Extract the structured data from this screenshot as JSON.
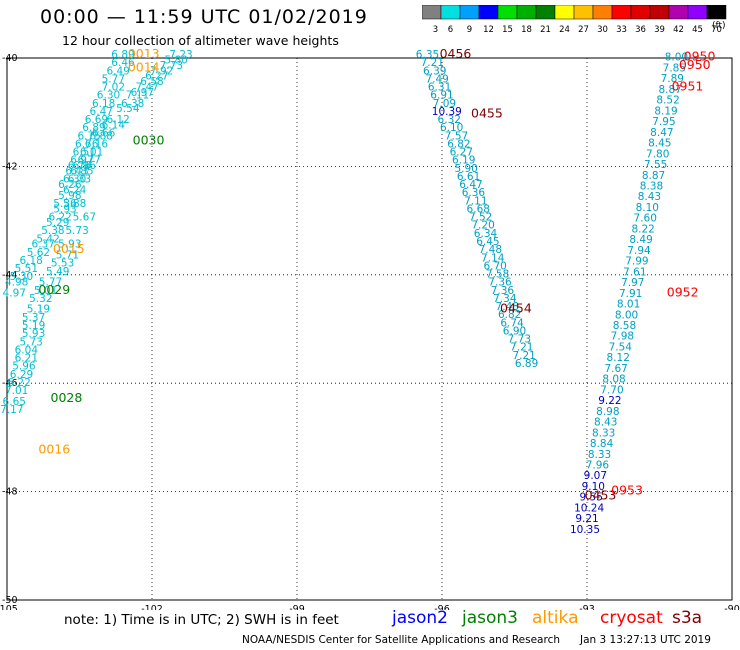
{
  "title": "00:00 — 11:59 UTC 01/02/2019",
  "subtitle": "12 hour collection of altimeter wave heights",
  "colorbar": {
    "labels": [
      "3",
      "6",
      "9",
      "12",
      "15",
      "18",
      "21",
      "24",
      "27",
      "30",
      "33",
      "36",
      "39",
      "42",
      "45",
      "70"
    ],
    "unit": "(ft)",
    "colors": [
      "#808080",
      "#00e0e0",
      "#00a0ff",
      "#0000ff",
      "#00e000",
      "#00b000",
      "#008000",
      "#ffff00",
      "#ffc000",
      "#ff8000",
      "#ff0000",
      "#e00000",
      "#c00000",
      "#b000b0",
      "#9000ff",
      "#000000"
    ]
  },
  "map": {
    "lon_ticks": [
      -105,
      -102,
      -99,
      -96,
      -93,
      -90
    ],
    "lat_ticks": [
      -40,
      -42,
      -44,
      -46,
      -48,
      -50
    ],
    "lon_range": [
      -105,
      -90
    ],
    "lat_range": [
      -50,
      -40
    ],
    "grid": "dotted"
  },
  "track_labels": [
    {
      "text": "0013",
      "lon": -102.5,
      "lat": -40.0,
      "color": "#ff9900"
    },
    {
      "text": "0014",
      "lon": -102.5,
      "lat": -40.25,
      "color": "#ff9900"
    },
    {
      "text": "0030",
      "lon": -102.4,
      "lat": -41.6,
      "color": "#008000"
    },
    {
      "text": "0015",
      "lon": -104.05,
      "lat": -43.6,
      "color": "#ff9900"
    },
    {
      "text": "0029",
      "lon": -104.35,
      "lat": -44.35,
      "color": "#008000"
    },
    {
      "text": "0028",
      "lon": -104.1,
      "lat": -46.35,
      "color": "#008000"
    },
    {
      "text": "0016",
      "lon": -104.35,
      "lat": -47.3,
      "color": "#ff9900"
    },
    {
      "text": "0456",
      "lon": -96.05,
      "lat": -40.0,
      "color": "#800000"
    },
    {
      "text": "0455",
      "lon": -95.4,
      "lat": -41.1,
      "color": "#800000"
    },
    {
      "text": "0454",
      "lon": -94.8,
      "lat": -44.7,
      "color": "#800000"
    },
    {
      "text": "0453",
      "lon": -93.05,
      "lat": -48.15,
      "color": "#800000"
    },
    {
      "text": "0950",
      "lon": -91.0,
      "lat": -40.05,
      "color": "#ff0000"
    },
    {
      "text": "0950",
      "lon": -91.1,
      "lat": -40.2,
      "color": "#ff0000"
    },
    {
      "text": "0951",
      "lon": -91.25,
      "lat": -40.6,
      "color": "#ff0000"
    },
    {
      "text": "0952",
      "lon": -91.35,
      "lat": -44.4,
      "color": "#ff0000"
    },
    {
      "text": "0953",
      "lon": -92.5,
      "lat": -48.05,
      "color": "#ff0000"
    }
  ],
  "tracks": [
    {
      "name": "track-a",
      "color": "#00c0d0",
      "points": [
        [
          "7.23",
          -101.4,
          -40.0
        ],
        [
          "5.80",
          -101.5,
          -40.1
        ],
        [
          "6.89",
          -102.6,
          -40.0
        ],
        [
          "6.46",
          -102.6,
          -40.15
        ],
        [
          "7.73",
          -101.6,
          -40.2
        ],
        [
          "7.92",
          -101.8,
          -40.3
        ],
        [
          "6.49",
          -102.7,
          -40.3
        ],
        [
          "6.27",
          -101.9,
          -40.4
        ],
        [
          "5.77",
          -102.8,
          -40.45
        ],
        [
          "6.58",
          -102.0,
          -40.5
        ],
        [
          "7.02",
          -102.8,
          -40.6
        ],
        [
          "7.47",
          -102.1,
          -40.6
        ],
        [
          "6.30",
          -102.9,
          -40.75
        ],
        [
          "7.11",
          -102.3,
          -40.75
        ],
        [
          "6.38",
          -102.4,
          -40.9
        ],
        [
          "6.18",
          -103.0,
          -40.9
        ],
        [
          "5.54",
          -102.5,
          -41.0
        ],
        [
          "6.47",
          -103.05,
          -41.05
        ],
        [
          "6.97",
          -102.2,
          -40.7
        ],
        [
          "6.12",
          -102.7,
          -41.2
        ],
        [
          "6.69",
          -103.15,
          -41.2
        ],
        [
          "6.14",
          -102.8,
          -41.3
        ],
        [
          "6.89",
          -103.2,
          -41.35
        ],
        [
          "6.66",
          -103.0,
          -41.45
        ],
        [
          "6.75",
          -103.3,
          -41.5
        ],
        [
          "6.88",
          -103.05,
          -41.5
        ],
        [
          "6.76",
          -103.35,
          -41.65
        ],
        [
          "6.16",
          -103.15,
          -41.65
        ],
        [
          "6.51",
          -103.4,
          -41.8
        ],
        [
          "6.01",
          -103.25,
          -41.8
        ],
        [
          "6.97",
          -103.45,
          -41.95
        ],
        [
          "6.77",
          -103.3,
          -41.95
        ],
        [
          "6.76",
          -103.5,
          -42.05
        ],
        [
          "6.96",
          -103.4,
          -42.05
        ],
        [
          "6.43",
          -103.55,
          -42.15
        ],
        [
          "6.85",
          -103.45,
          -42.15
        ],
        [
          "6.30",
          -103.6,
          -42.3
        ],
        [
          "6.33",
          -103.5,
          -42.3
        ],
        [
          "6.26",
          -103.7,
          -42.4
        ],
        [
          "6.24",
          -103.6,
          -42.5
        ],
        [
          "5.98",
          -103.7,
          -42.6
        ],
        [
          "5.36",
          -103.8,
          -42.75
        ],
        [
          "5.88",
          -103.6,
          -42.75
        ],
        [
          "5.93",
          -103.8,
          -42.85
        ],
        [
          "6.22",
          -103.9,
          -43.0
        ],
        [
          "5.67",
          -103.4,
          -43.0
        ],
        [
          "5.29",
          -103.95,
          -43.1
        ],
        [
          "5.38",
          -104.05,
          -43.25
        ],
        [
          "5.73",
          -103.55,
          -43.25
        ],
        [
          "5.42",
          -104.15,
          -43.4
        ],
        [
          "6.37",
          -104.25,
          -43.5
        ],
        [
          "5.93",
          -103.7,
          -43.5
        ],
        [
          "5.62",
          -104.35,
          -43.65
        ],
        [
          "5.71",
          -103.75,
          -43.7
        ],
        [
          "6.18",
          -104.5,
          -43.8
        ],
        [
          "5.53",
          -103.85,
          -43.85
        ],
        [
          "5.51",
          -104.6,
          -43.95
        ],
        [
          "5.49",
          -103.95,
          -44.0
        ],
        [
          "5.30",
          -104.7,
          -44.1
        ],
        [
          "5.77",
          -104.1,
          -44.2
        ],
        [
          "4.98",
          -104.8,
          -44.2
        ],
        [
          "5.01",
          -104.2,
          -44.35
        ],
        [
          "4.97",
          -104.85,
          -44.4
        ],
        [
          "5.32",
          -104.3,
          -44.5
        ],
        [
          "5.19",
          -104.35,
          -44.7
        ],
        [
          "5.37",
          -104.45,
          -44.85
        ],
        [
          "5.19",
          -104.45,
          -45.0
        ],
        [
          "5.93",
          -104.45,
          -45.15
        ],
        [
          "5.73",
          -104.5,
          -45.3
        ],
        [
          "6.04",
          -104.6,
          -45.45
        ],
        [
          "6.21",
          -104.6,
          -45.6
        ],
        [
          "5.96",
          -104.65,
          -45.75
        ],
        [
          "6.29",
          -104.7,
          -45.9
        ],
        [
          "6.22",
          -104.75,
          -46.05
        ],
        [
          "7.01",
          -104.8,
          -46.2
        ],
        [
          "6.65",
          -104.85,
          -46.4
        ],
        [
          "7.17",
          -104.9,
          -46.55
        ]
      ]
    }
  ],
  "ticks_by_track": {
    "t456": [
      [
        "6.35",
        -96.3,
        -40.0
      ],
      [
        "7.21",
        -96.2,
        -40.15
      ],
      [
        "6.39",
        -96.15,
        -40.3
      ],
      [
        "7.49",
        -96.1,
        -40.45
      ],
      [
        "6.31",
        -96.05,
        -40.6
      ],
      [
        "6.91",
        -96.0,
        -40.75
      ],
      [
        "7.09",
        -95.95,
        -40.9
      ],
      [
        "10.39",
        -95.9,
        -41.05
      ],
      [
        "6.32",
        -95.85,
        -41.2
      ],
      [
        "6.10",
        -95.8,
        -41.35
      ],
      [
        "7.57",
        -95.7,
        -41.5
      ],
      [
        "6.82",
        -95.65,
        -41.65
      ],
      [
        "6.27",
        -95.6,
        -41.8
      ],
      [
        "6.19",
        -95.55,
        -41.95
      ],
      [
        "5.90",
        -95.5,
        -42.1
      ],
      [
        "6.61",
        -95.45,
        -42.25
      ],
      [
        "6.47",
        -95.4,
        -42.4
      ],
      [
        "6.36",
        -95.35,
        -42.55
      ],
      [
        "7.11",
        -95.3,
        -42.7
      ],
      [
        "6.68",
        -95.25,
        -42.85
      ],
      [
        "7.52",
        -95.2,
        -43.0
      ],
      [
        "7.20",
        -95.15,
        -43.15
      ],
      [
        "6.34",
        -95.1,
        -43.3
      ],
      [
        "6.45",
        -95.05,
        -43.45
      ],
      [
        "7.48",
        -95.0,
        -43.6
      ],
      [
        "7.14",
        -94.95,
        -43.75
      ],
      [
        "6.70",
        -94.9,
        -43.9
      ],
      [
        "7.58",
        -94.85,
        -44.05
      ],
      [
        "7.36",
        -94.8,
        -44.2
      ],
      [
        "7.36",
        -94.75,
        -44.35
      ],
      [
        "7.34",
        -94.7,
        -44.5
      ],
      [
        "7.48",
        -94.65,
        -44.65
      ],
      [
        "6.82",
        -94.6,
        -44.8
      ],
      [
        "6.74",
        -94.55,
        -44.95
      ],
      [
        "6.90",
        -94.5,
        -45.1
      ],
      [
        "7.73",
        -94.4,
        -45.25
      ],
      [
        "7.21",
        -94.35,
        -45.4
      ],
      [
        "7.21",
        -94.3,
        -45.55
      ],
      [
        "6.89",
        -94.25,
        -45.7
      ]
    ]
  },
  "legend": {
    "note": "note:  1) Time is in UTC; 2) SWH is in feet",
    "items": [
      {
        "label": "jason2",
        "color": "#0000ff"
      },
      {
        "label": "jason3",
        "color": "#008000"
      },
      {
        "label": "altika",
        "color": "#ff9900"
      },
      {
        "label": "cryosat",
        "color": "#ff0000"
      },
      {
        "label": "s3a",
        "color": "#800000"
      }
    ]
  },
  "credit": "NOAA/NESDIS Center for Satellite Applications and Research",
  "stamp": "Jan  3 13:27:13 UTC 2019"
}
